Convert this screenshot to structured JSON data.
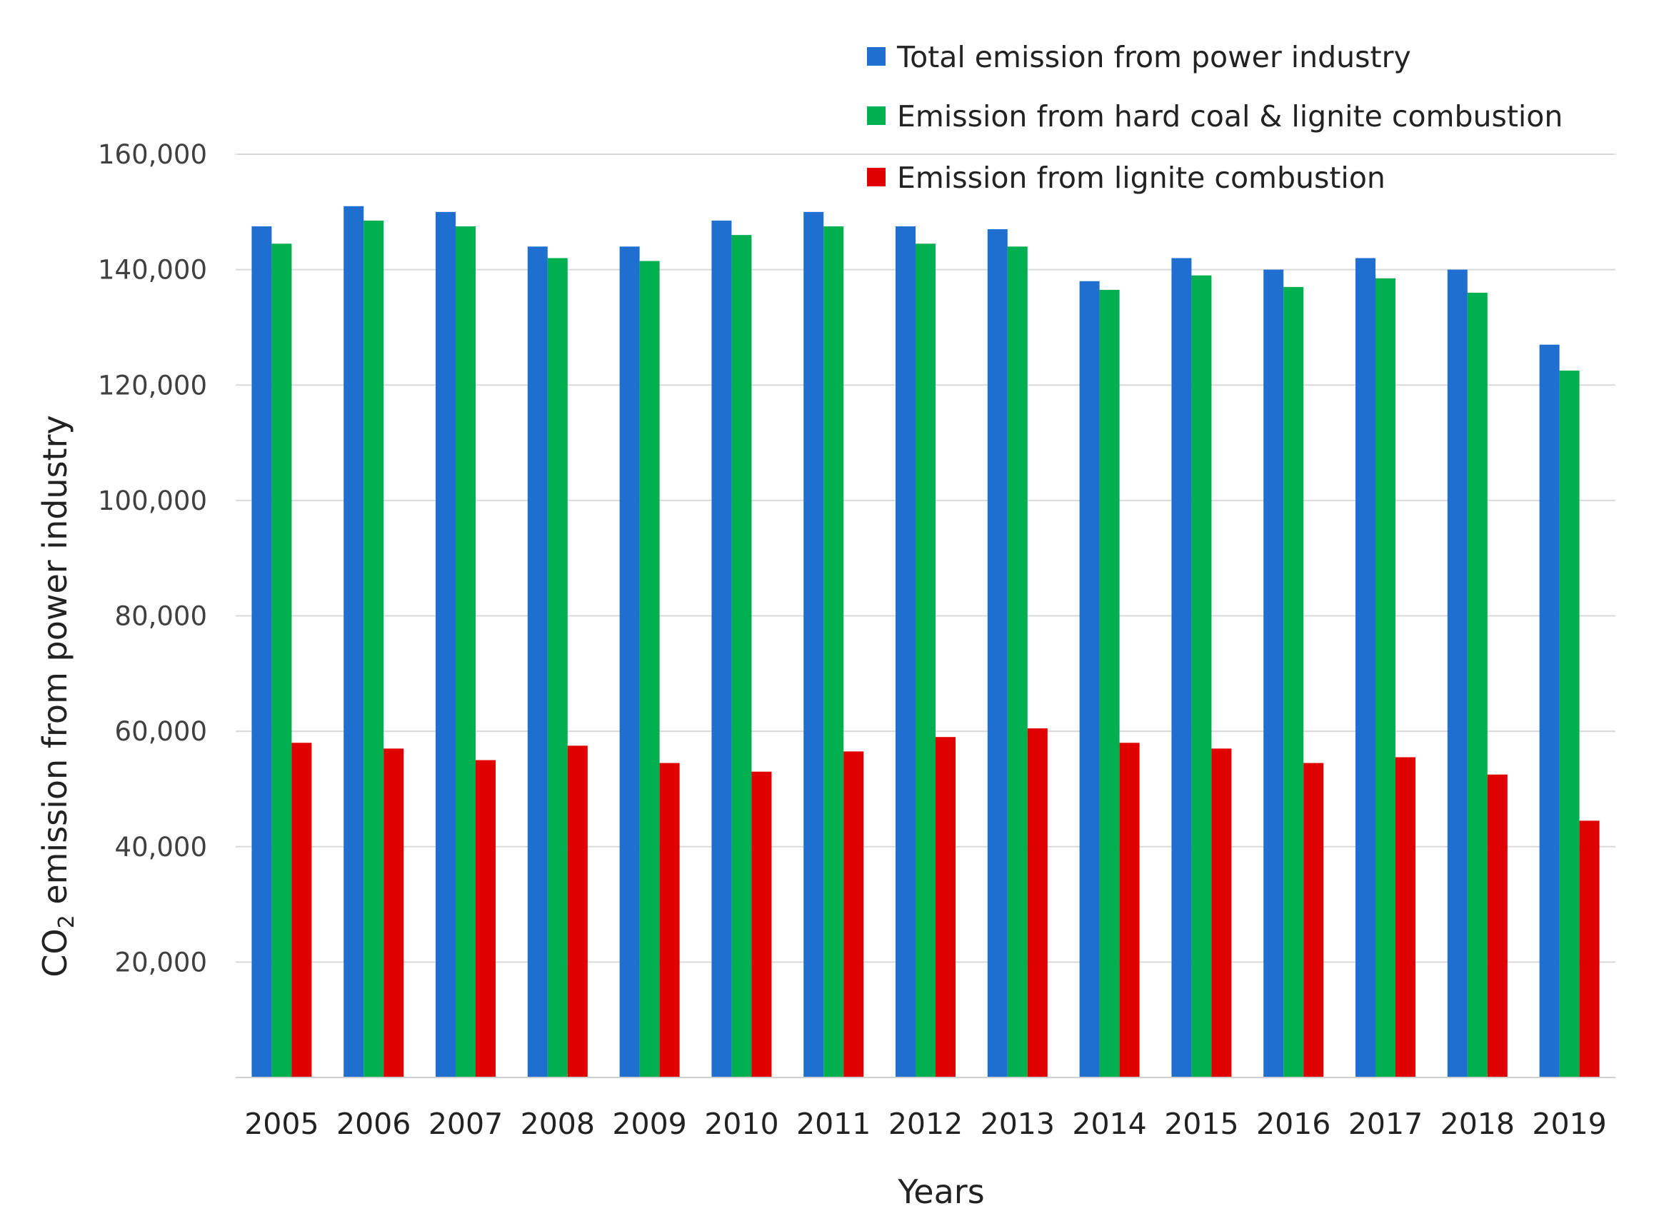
{
  "chart_data": {
    "type": "bar",
    "title": "",
    "xlabel": "Years",
    "ylabel": {
      "prefix": "CO",
      "subscript": "2",
      "suffix": " emission from power industry"
    },
    "ylim": [
      0,
      160000
    ],
    "yticks": [
      20000,
      40000,
      60000,
      80000,
      100000,
      120000,
      140000,
      160000
    ],
    "ytick_labels": [
      "20,000",
      "40,000",
      "60,000",
      "80,000",
      "100,000",
      "120,000",
      "140,000",
      "160,000"
    ],
    "grid": true,
    "legend_position": "top-right",
    "categories": [
      "2005",
      "2006",
      "2007",
      "2008",
      "2009",
      "2010",
      "2011",
      "2012",
      "2013",
      "2014",
      "2015",
      "2016",
      "2017",
      "2018",
      "2019"
    ],
    "series": [
      {
        "name": "Total emission from power industry",
        "color": "#1f6fd1",
        "values": [
          147500,
          151000,
          150000,
          144000,
          144000,
          148500,
          150000,
          147500,
          147000,
          138000,
          142000,
          140000,
          142000,
          140000,
          127000
        ]
      },
      {
        "name": "Emission from hard coal & lignite combustion",
        "color": "#00b050",
        "values": [
          144500,
          148500,
          147500,
          142000,
          141500,
          146000,
          147500,
          144500,
          144000,
          136500,
          139000,
          137000,
          138500,
          136000,
          122500
        ]
      },
      {
        "name": "Emission from lignite combustion",
        "color": "#e00000",
        "values": [
          58000,
          57000,
          55000,
          57500,
          54500,
          53000,
          56500,
          59000,
          60500,
          58000,
          57000,
          54500,
          55500,
          52500,
          44500
        ]
      }
    ]
  }
}
